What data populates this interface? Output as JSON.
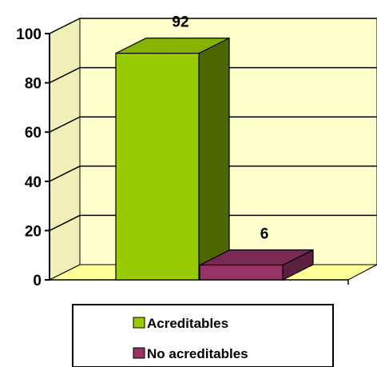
{
  "chart_data": {
    "type": "bar",
    "categories": [
      "Acreditables",
      "No acreditables"
    ],
    "values": [
      92,
      6
    ],
    "data_labels": [
      "92",
      "6"
    ],
    "y_ticks": [
      "0",
      "20",
      "40",
      "60",
      "80",
      "100"
    ],
    "ylim": [
      0,
      100
    ],
    "grid": true,
    "three_d": true,
    "legend_position": "bottom",
    "title": "",
    "xlabel": "",
    "ylabel": "",
    "colors": {
      "Acreditables": {
        "front": "#99CC00",
        "side": "#4D6600",
        "top": "#86B300"
      },
      "No acreditables": {
        "front": "#993366",
        "side": "#5C1F3D",
        "top": "#7A2952"
      },
      "wall": "#FFFFCC",
      "floor": "#FFFF99",
      "gridline": "#000000"
    }
  },
  "legend": {
    "items": [
      {
        "label": "Acreditables",
        "color": "#99CC00"
      },
      {
        "label": "No acreditables",
        "color": "#993366"
      }
    ]
  }
}
